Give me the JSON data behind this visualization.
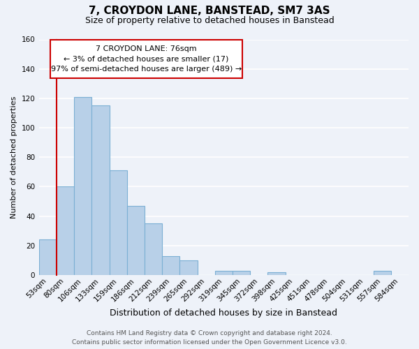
{
  "title": "7, CROYDON LANE, BANSTEAD, SM7 3AS",
  "subtitle": "Size of property relative to detached houses in Banstead",
  "xlabel": "Distribution of detached houses by size in Banstead",
  "ylabel": "Number of detached properties",
  "bin_labels": [
    "53sqm",
    "80sqm",
    "106sqm",
    "133sqm",
    "159sqm",
    "186sqm",
    "212sqm",
    "239sqm",
    "265sqm",
    "292sqm",
    "319sqm",
    "345sqm",
    "372sqm",
    "398sqm",
    "425sqm",
    "451sqm",
    "478sqm",
    "504sqm",
    "531sqm",
    "557sqm",
    "584sqm"
  ],
  "bar_heights": [
    24,
    60,
    121,
    115,
    71,
    47,
    35,
    13,
    10,
    0,
    3,
    3,
    0,
    2,
    0,
    0,
    0,
    0,
    0,
    3,
    0
  ],
  "bar_color": "#b8d0e8",
  "bar_edge_color": "#7bafd4",
  "highlight_line_color": "#cc0000",
  "ylim": [
    0,
    160
  ],
  "yticks": [
    0,
    20,
    40,
    60,
    80,
    100,
    120,
    140,
    160
  ],
  "annotation_line1": "7 CROYDON LANE: 76sqm",
  "annotation_line2": "← 3% of detached houses are smaller (17)",
  "annotation_line3": "97% of semi-detached houses are larger (489) →",
  "footer_line1": "Contains HM Land Registry data © Crown copyright and database right 2024.",
  "footer_line2": "Contains public sector information licensed under the Open Government Licence v3.0.",
  "background_color": "#eef2f9",
  "grid_color": "#ffffff",
  "title_fontsize": 11,
  "subtitle_fontsize": 9,
  "xlabel_fontsize": 9,
  "ylabel_fontsize": 8,
  "tick_fontsize": 7.5,
  "annotation_fontsize": 8,
  "footer_fontsize": 6.5
}
